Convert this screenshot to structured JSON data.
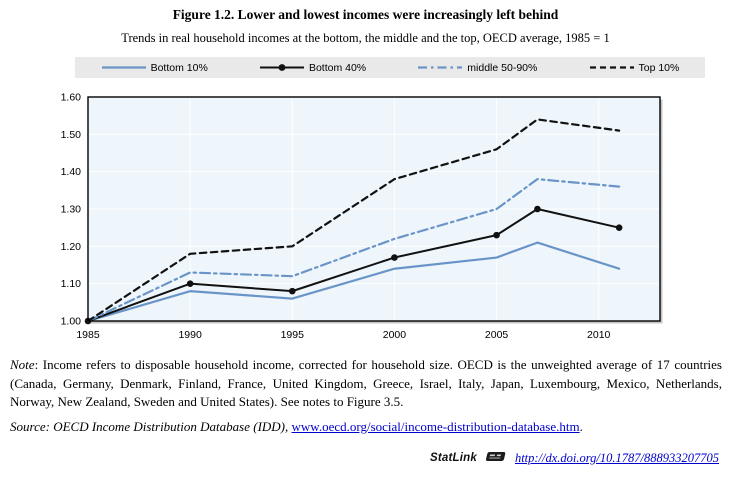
{
  "page": {
    "title": "Figure 1.2. Lower and lowest incomes were increasingly left behind",
    "subtitle": "Trends in real household incomes at the bottom, the middle and the top, OECD average, 1985 = 1"
  },
  "legend": [
    {
      "label": "Bottom 10%"
    },
    {
      "label": "Bottom 40%"
    },
    {
      "label": "middle 50-90%"
    },
    {
      "label": "Top 10%"
    }
  ],
  "chart_data": {
    "type": "line",
    "title": "Trends in real household incomes at the bottom, the middle and the top, OECD average, 1985 = 1",
    "x": [
      1985,
      1990,
      1995,
      2000,
      2005,
      2007,
      2011
    ],
    "series": [
      {
        "name": "Bottom 10%",
        "values": [
          1.0,
          1.08,
          1.06,
          1.14,
          1.17,
          1.21,
          1.14
        ],
        "color": "#6A94C8",
        "dash": "solid",
        "marker": false,
        "width": 2.2
      },
      {
        "name": "Bottom 40%",
        "values": [
          1.0,
          1.1,
          1.08,
          1.17,
          1.23,
          1.3,
          1.25
        ],
        "color": "#111111",
        "dash": "solid",
        "marker": true,
        "width": 2.0
      },
      {
        "name": "middle 50-90%",
        "values": [
          1.0,
          1.13,
          1.12,
          1.22,
          1.3,
          1.38,
          1.36
        ],
        "color": "#6A94C8",
        "dash": "dashdot",
        "marker": false,
        "width": 2.2
      },
      {
        "name": "Top 10%",
        "values": [
          1.0,
          1.18,
          1.2,
          1.38,
          1.46,
          1.54,
          1.51
        ],
        "color": "#111111",
        "dash": "dashed",
        "marker": false,
        "width": 2.2
      }
    ],
    "xticks": [
      1985,
      1990,
      1995,
      2000,
      2005,
      2010
    ],
    "yticks": [
      "1.00",
      "1.10",
      "1.20",
      "1.30",
      "1.40",
      "1.50",
      "1.60"
    ],
    "xlim": [
      1985,
      2013
    ],
    "ylim": [
      1.0,
      1.6
    ],
    "xlabel": "",
    "ylabel": "",
    "grid": true,
    "grid_color": "#ffffff",
    "plot_bg": "#eef6fb",
    "frame_color": "#000000",
    "legend_position": "top"
  },
  "note": {
    "label": "Note",
    "text": ": Income refers to disposable household income, corrected for household size. OECD is the unweighted average of 17 countries (Canada, Germany, Denmark, Finland, France, United Kingdom, Greece, Israel, Italy, Japan, Luxembourg, Mexico, Netherlands, Norway, New Zealand, Sweden and United States). See notes to Figure 3.5."
  },
  "source": {
    "prefix": "Source: OECD Income Distribution Database (IDD), ",
    "link": "www.oecd.org/social/income-distribution-database.htm",
    "suffix": "."
  },
  "statlink": {
    "label": "StatLink",
    "url": "http://dx.doi.org/10.1787/888933207705"
  }
}
